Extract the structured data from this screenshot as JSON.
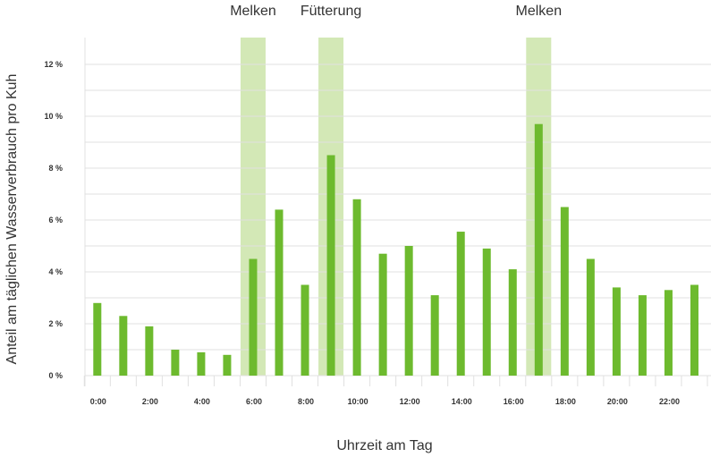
{
  "chart_data": {
    "type": "bar",
    "title": "",
    "xlabel": "Uhrzeit am Tag",
    "ylabel": "Anteil am täglichen Wasserverbrauch pro Kuh",
    "categories": [
      "0:00",
      "1:00",
      "2:00",
      "3:00",
      "4:00",
      "5:00",
      "6:00",
      "7:00",
      "8:00",
      "9:00",
      "10:00",
      "11:00",
      "12:00",
      "13:00",
      "14:00",
      "15:00",
      "16:00",
      "17:00",
      "18:00",
      "19:00",
      "20:00",
      "21:00",
      "22:00",
      "23:00"
    ],
    "x_tick_labels": [
      "0:00",
      "2:00",
      "4:00",
      "6:00",
      "8:00",
      "10:00",
      "12:00",
      "14:00",
      "16:00",
      "18:00",
      "20:00",
      "22:00"
    ],
    "values": [
      2.8,
      2.3,
      1.9,
      1.0,
      0.9,
      0.8,
      4.5,
      6.4,
      3.5,
      8.5,
      6.8,
      4.7,
      5.0,
      3.1,
      5.55,
      4.9,
      4.1,
      9.7,
      6.5,
      4.5,
      3.4,
      3.1,
      3.3,
      3.5
    ],
    "y_unit": "%",
    "ylim": [
      0,
      13
    ],
    "y_ticks": [
      {
        "value": 0,
        "label": "0 %"
      },
      {
        "value": 2,
        "label": "2 %"
      },
      {
        "value": 4,
        "label": "4 %"
      },
      {
        "value": 6,
        "label": "6 %"
      },
      {
        "value": 8,
        "label": "8 %"
      },
      {
        "value": 10,
        "label": "10 %"
      },
      {
        "value": 12,
        "label": "12 %"
      }
    ],
    "highlight_bands": [
      {
        "hour": 6,
        "label": "Melken"
      },
      {
        "hour": 9,
        "label": "Fütterung"
      },
      {
        "hour": 17,
        "label": "Melken"
      }
    ],
    "grid": true,
    "colors": {
      "bar": "#6dba2e",
      "band": "#d3e8b6",
      "grid": "#e0e0e0",
      "text": "#333333"
    }
  }
}
